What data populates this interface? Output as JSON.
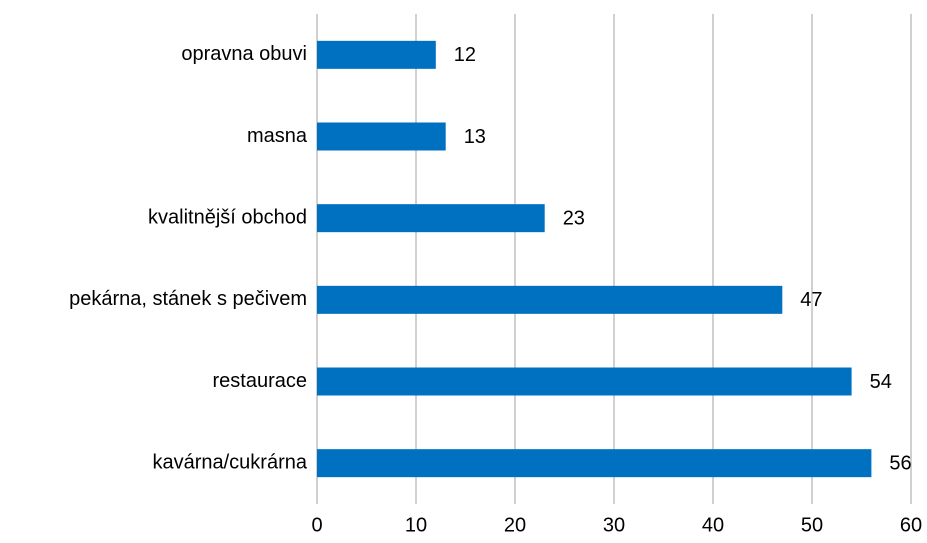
{
  "chart_data": {
    "type": "bar",
    "orientation": "horizontal",
    "categories": [
      "opravna obuvi",
      "masna",
      "kvalitnější obchod",
      "pekárna, stánek s pečivem",
      "restaurace",
      "kavárna/cukrárna"
    ],
    "values": [
      12,
      13,
      23,
      47,
      54,
      56
    ],
    "color": "#0070c0",
    "xlim": [
      0,
      60
    ],
    "xticks": [
      0,
      10,
      20,
      30,
      40,
      50,
      60
    ],
    "grid": true
  }
}
